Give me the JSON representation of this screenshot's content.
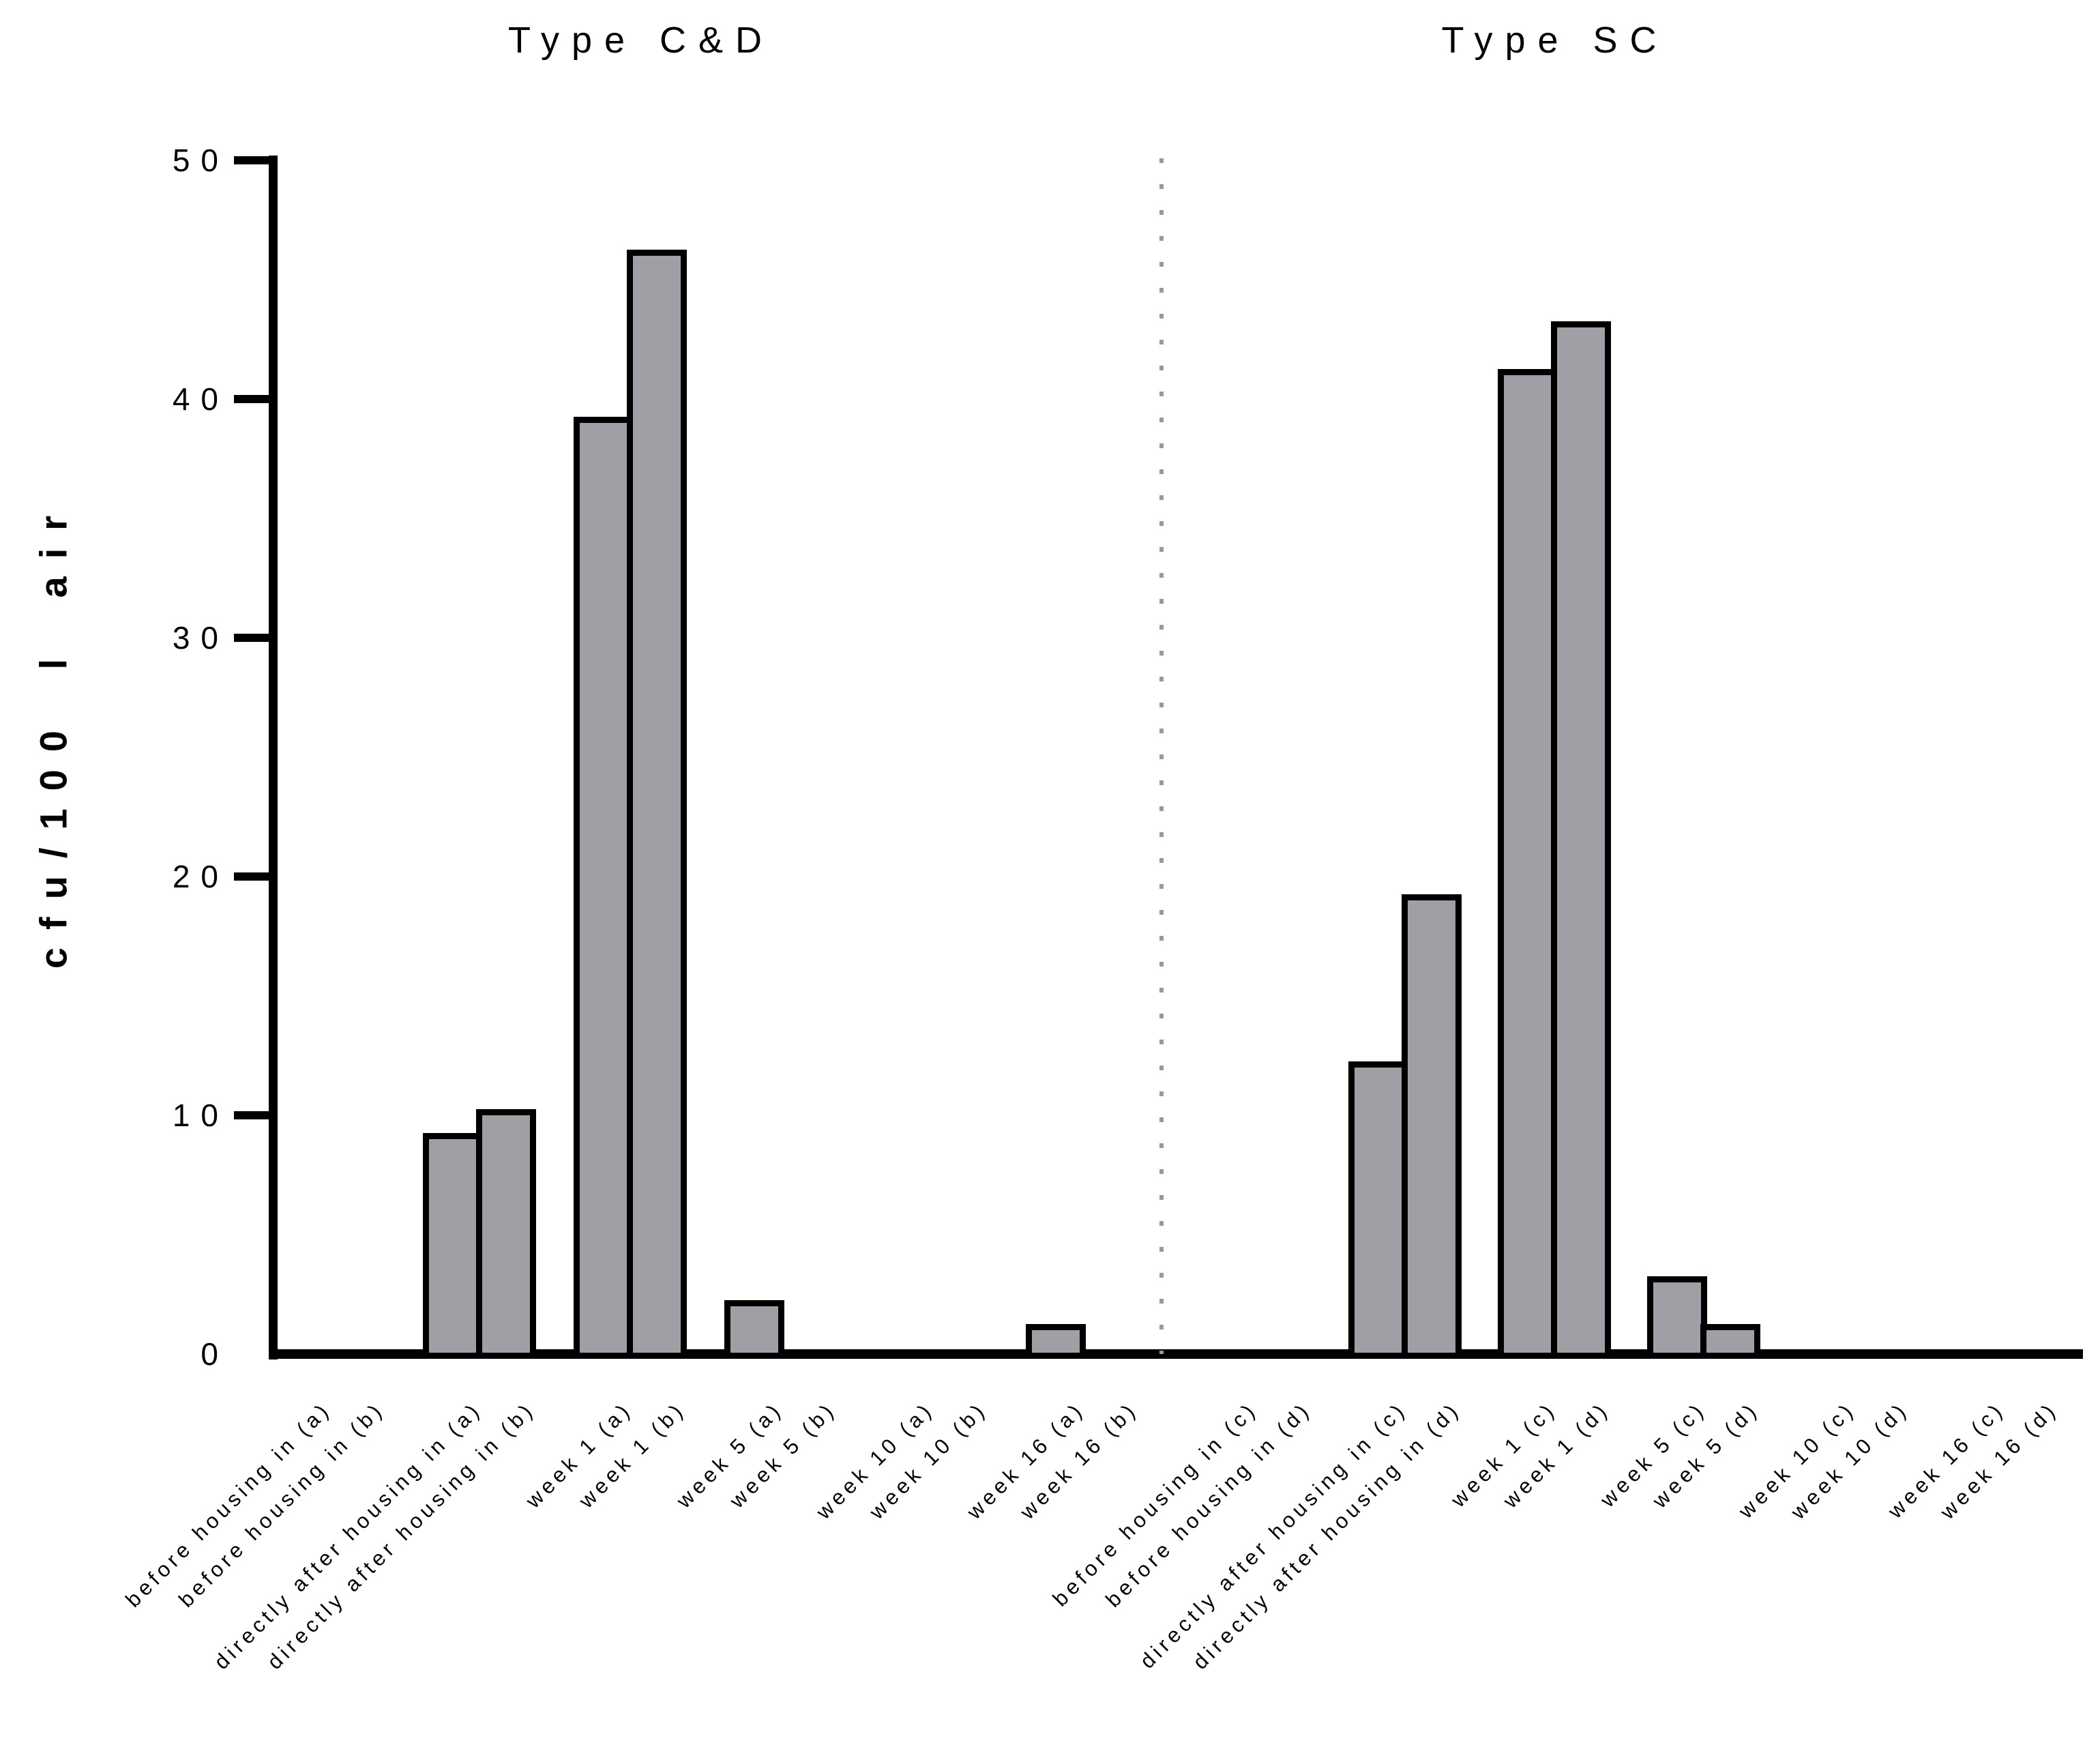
{
  "figure": {
    "y_axis_label": "cfu/100 l air"
  },
  "chart_data": {
    "type": "bar",
    "title": "",
    "ylabel": "cfu/100 l air",
    "xlabel": "",
    "ylim": [
      0,
      50
    ],
    "yticks": [
      "0",
      "10",
      "20",
      "30",
      "40",
      "50"
    ],
    "grid": false,
    "legend": "none",
    "bar_fill_color": "#a09fa5",
    "bar_border_color": "#000000",
    "axis_color": "#000000",
    "divider_color": "#999999",
    "panels": [
      {
        "title": "Type C&D",
        "categories": [
          "before housing in (a)",
          "before housing in (b)",
          "directly after housing in (a)",
          "directly after housing in (b)",
          "week 1 (a)",
          "week 1 (b)",
          "week 5 (a)",
          "week 5 (b)",
          "week 10 (a)",
          "week 10 (b)",
          "week 16 (a)",
          "week 16 (b)"
        ],
        "values": [
          0,
          0,
          9,
          10,
          39,
          46,
          2,
          0,
          0,
          0,
          1,
          0
        ]
      },
      {
        "title": "Type SC",
        "categories": [
          "before housing in (c)",
          "before housing in (d)",
          "directly after housing in (c)",
          "directly after housing in (d)",
          "week 1 (c)",
          "week 1 (d)",
          "week 5 (c)",
          "week 5 (d)",
          "week 10 (c)",
          "week 10 (d)",
          "week 16 (c)",
          "week 16 (d)"
        ],
        "values": [
          0,
          0,
          12,
          19,
          41,
          43,
          3,
          1,
          0,
          0,
          0,
          0
        ]
      }
    ]
  }
}
